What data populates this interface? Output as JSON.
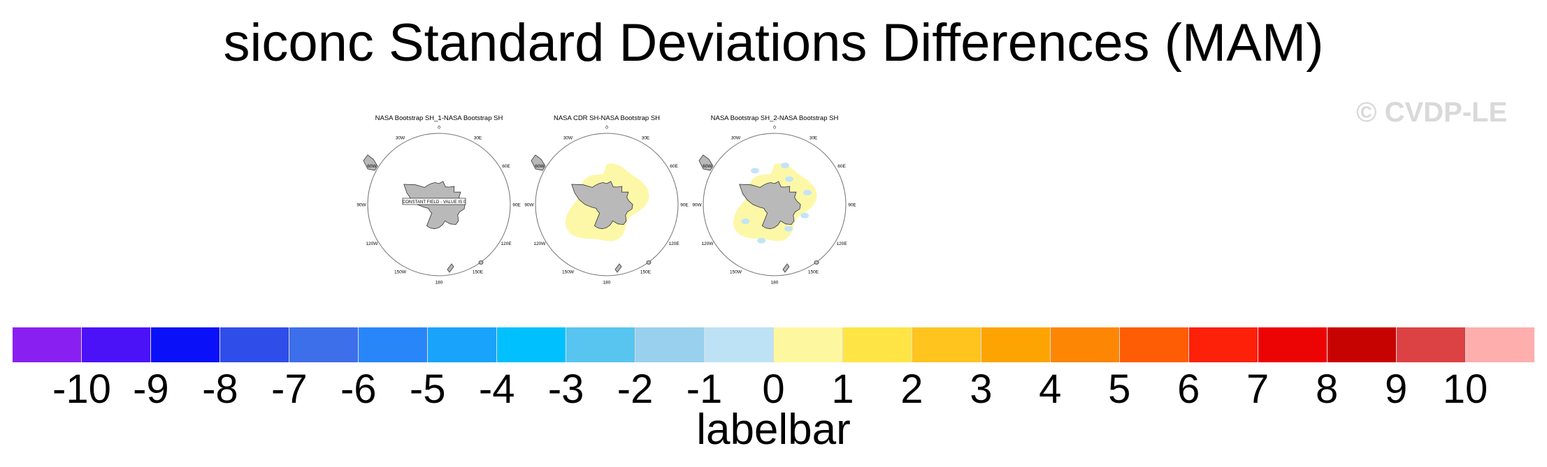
{
  "title": "siconc Standard Deviations Differences (MAM)",
  "watermark": "© CVDP-LE",
  "panels": [
    {
      "title": "NASA Bootstrap SH_1-NASA Bootstrap SH",
      "note": "CONSTANT FIELD - VALUE IS 0",
      "field": "none"
    },
    {
      "title": "NASA CDR SH-NASA Bootstrap SH",
      "note": "",
      "field": "positive"
    },
    {
      "title": "NASA Bootstrap SH_2-NASA Bootstrap SH",
      "note": "",
      "field": "mixed"
    }
  ],
  "longitude_labels": [
    "0",
    "30E",
    "60E",
    "90E",
    "120E",
    "150E",
    "180",
    "150W",
    "120W",
    "90W",
    "60W",
    "30W"
  ],
  "colors": {
    "land": "#b9b9b9",
    "coast": "#333333",
    "positive_fill": "#fdf8a7",
    "negative_fill": "#c4e4f6",
    "watermark": "#d9d9d9"
  },
  "labelbar": {
    "label": "labelbar",
    "ticks": [
      "-10",
      "-9",
      "-8",
      "-7",
      "-6",
      "-5",
      "-4",
      "-3",
      "-2",
      "-1",
      "0",
      "1",
      "2",
      "3",
      "4",
      "5",
      "6",
      "7",
      "8",
      "9",
      "10"
    ],
    "colors": [
      "#8a1ff2",
      "#4b12f8",
      "#0a10f7",
      "#2f4de9",
      "#3c6fe9",
      "#2886f8",
      "#19a3fa",
      "#00c0fd",
      "#57c5f0",
      "#98d0ee",
      "#bde2f5",
      "#fdf89f",
      "#fee545",
      "#ffc41e",
      "#fea402",
      "#fe8605",
      "#fe5c05",
      "#fd210a",
      "#ec0304",
      "#c70302",
      "#dc4143",
      "#ffaeae"
    ]
  }
}
